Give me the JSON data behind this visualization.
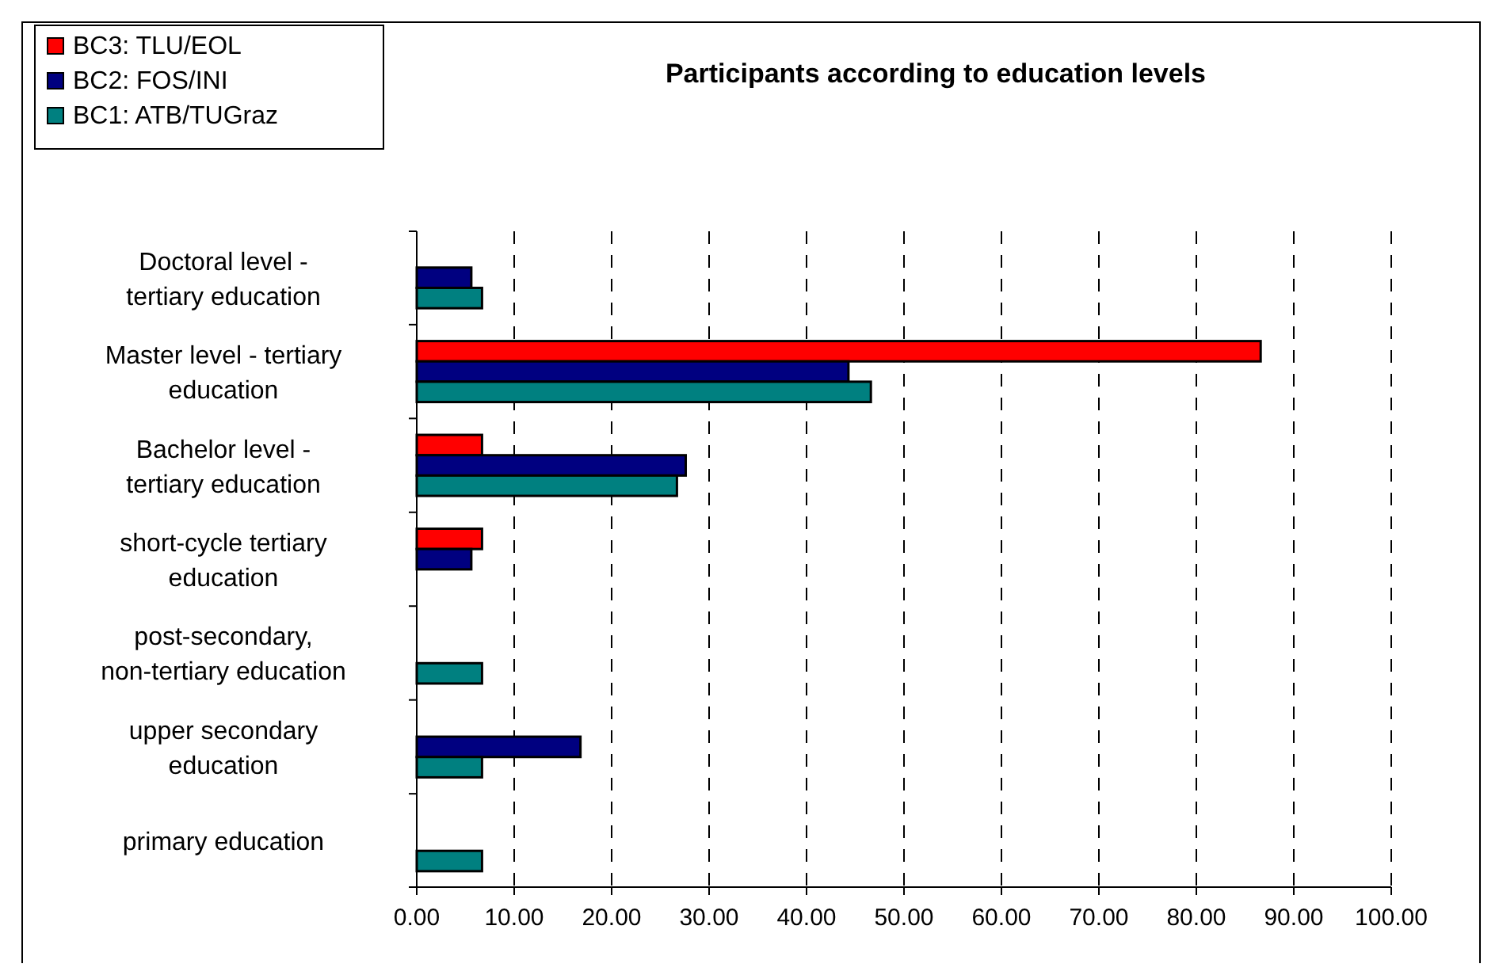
{
  "chart_data": {
    "type": "bar",
    "orientation": "horizontal",
    "title": "Participants according to education levels",
    "categories": [
      "Doctoral level - tertiary education",
      "Master level - tertiary education",
      "Bachelor level - tertiary education",
      "short-cycle tertiary education",
      "post-secondary, non-tertiary education",
      "upper secondary education",
      "primary education"
    ],
    "series": [
      {
        "name": "BC3: TLU/EOL",
        "color": "#ff0000",
        "values": [
          null,
          86.6,
          6.7,
          6.7,
          null,
          null,
          null
        ]
      },
      {
        "name": "BC2: FOS/INI",
        "color": "#000080",
        "values": [
          5.6,
          44.3,
          27.6,
          5.6,
          null,
          16.8,
          null
        ]
      },
      {
        "name": "BC1: ATB/TUGraz",
        "color": "#008080",
        "values": [
          6.7,
          46.6,
          26.7,
          null,
          6.7,
          6.7,
          6.7
        ]
      }
    ],
    "xlim": [
      0,
      100
    ],
    "xticks": [
      {
        "value": 0,
        "label": "0.00"
      },
      {
        "value": 10,
        "label": "10.00"
      },
      {
        "value": 20,
        "label": "20.00"
      },
      {
        "value": 30,
        "label": "30.00"
      },
      {
        "value": 40,
        "label": "40.00"
      },
      {
        "value": 50,
        "label": "50.00"
      },
      {
        "value": 60,
        "label": "60.00"
      },
      {
        "value": 70,
        "label": "70.00"
      },
      {
        "value": 80,
        "label": "80.00"
      },
      {
        "value": 90,
        "label": "90.00"
      },
      {
        "value": 100,
        "label": "100.00"
      }
    ],
    "grid": "x",
    "legend": "top left"
  }
}
